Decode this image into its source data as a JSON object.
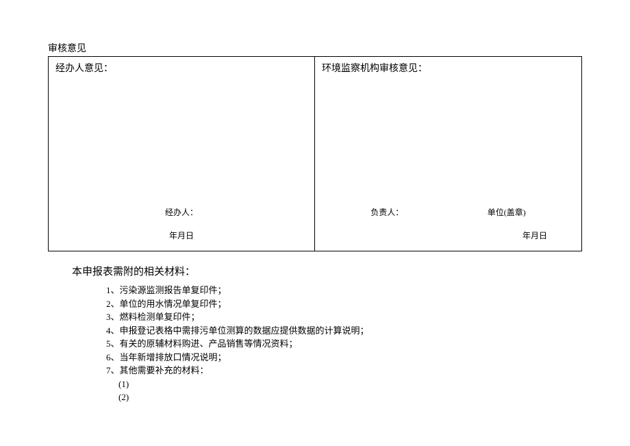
{
  "section_title": "审核意见",
  "review": {
    "left": {
      "title": "经办人意见：",
      "signer_label": "经办人：",
      "date": "年月日"
    },
    "right": {
      "title": "环境监察机构审核意见：",
      "signer_label": "负责人：",
      "stamp_label": "单位(盖章)",
      "date": "年月日"
    }
  },
  "materials": {
    "title": "本申报表需附的相关材料：",
    "items": [
      "1、污染源监测报告单复印件；",
      "2、单位的用水情况单复印件；",
      "3、燃料检测单复印件；",
      "4、申报登记表格中需排污单位测算的数据应提供数据的计算说明；",
      "5、有关的原辅材料购进、产品销售等情况资料；",
      "6、当年新增排放口情况说明；",
      "7、其他需要补充的材料："
    ],
    "sub_items": [
      "(1)",
      "(2)"
    ]
  }
}
